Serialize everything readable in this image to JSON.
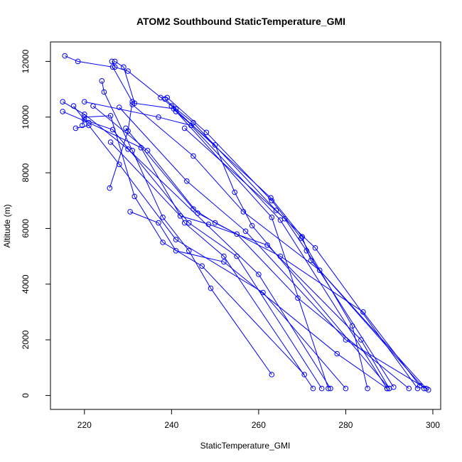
{
  "chart_data": {
    "type": "line",
    "title": "ATOM2 Southbound StaticTemperature_GMI",
    "xlabel": "StaticTemperature_GMI",
    "ylabel": "Altitude (m)",
    "xlim": [
      212.2,
      301.8
    ],
    "ylim": [
      -500,
      12700
    ],
    "xticks": [
      220,
      240,
      260,
      280,
      300
    ],
    "yticks": [
      0,
      2000,
      4000,
      6000,
      8000,
      10000,
      12000
    ],
    "grid": false,
    "legend": "none",
    "color": "#0000ff",
    "series": [
      {
        "points": [
          [
            215.5,
            12200
          ],
          [
            218.5,
            12000
          ],
          [
            226.5,
            11800
          ],
          [
            231,
            10550
          ],
          [
            230,
            9500
          ],
          [
            225.8,
            7450
          ]
        ]
      },
      {
        "points": [
          [
            226.3,
            12000
          ],
          [
            227,
            11800
          ],
          [
            230,
            11650
          ],
          [
            240,
            10400
          ],
          [
            262.8,
            7100
          ],
          [
            270,
            5700
          ],
          [
            272,
            4850
          ],
          [
            298.5,
            250
          ]
        ]
      },
      {
        "points": [
          [
            227,
            12000
          ],
          [
            229,
            11800
          ],
          [
            231.5,
            10500
          ],
          [
            240.5,
            10300
          ],
          [
            263,
            6400
          ],
          [
            276,
            250
          ]
        ]
      },
      {
        "points": [
          [
            224,
            11300
          ],
          [
            224.5,
            10900
          ],
          [
            231,
            8800
          ],
          [
            238,
            6400
          ],
          [
            244,
            5200
          ],
          [
            249,
            3850
          ],
          [
            263,
            750
          ]
        ]
      },
      {
        "points": [
          [
            215,
            10550
          ],
          [
            220,
            10100
          ],
          [
            230,
            8850
          ],
          [
            260,
            4350
          ],
          [
            276.5,
            250
          ]
        ]
      },
      {
        "points": [
          [
            215,
            10200
          ],
          [
            221,
            9800
          ],
          [
            233,
            8900
          ],
          [
            243,
            6200
          ],
          [
            252,
            5000
          ],
          [
            272.5,
            250
          ]
        ]
      },
      {
        "points": [
          [
            220,
            10550
          ],
          [
            237,
            10000
          ],
          [
            244.5,
            9700
          ],
          [
            265,
            6300
          ],
          [
            289.5,
            250
          ]
        ]
      },
      {
        "points": [
          [
            217.5,
            10400
          ],
          [
            220,
            9900
          ],
          [
            226.5,
            9550
          ],
          [
            244,
            6200
          ],
          [
            255,
            5000
          ],
          [
            274.5,
            250
          ]
        ]
      },
      {
        "points": [
          [
            218,
            9600
          ],
          [
            221,
            9700
          ],
          [
            228,
            8300
          ],
          [
            241,
            5600
          ],
          [
            261,
            3700
          ],
          [
            280,
            250
          ]
        ]
      },
      {
        "points": [
          [
            219.5,
            9700
          ],
          [
            220,
            10000
          ],
          [
            226,
            10050
          ],
          [
            231.5,
            7150
          ],
          [
            238,
            5500
          ],
          [
            247,
            4650
          ],
          [
            270.5,
            750
          ]
        ]
      },
      {
        "points": [
          [
            237.5,
            10700
          ],
          [
            239,
            10700
          ],
          [
            248,
            9450
          ],
          [
            263,
            7000
          ],
          [
            269.8,
            5650
          ],
          [
            281.5,
            2500
          ],
          [
            285,
            250
          ]
        ]
      },
      {
        "points": [
          [
            238.5,
            10650
          ],
          [
            241,
            10300
          ],
          [
            245,
            9800
          ],
          [
            264,
            6650
          ],
          [
            273,
            5300
          ],
          [
            296.5,
            250
          ]
        ]
      },
      {
        "points": [
          [
            241,
            10200
          ],
          [
            250,
            9000
          ],
          [
            254.5,
            7300
          ],
          [
            258.5,
            6100
          ],
          [
            290,
            250
          ]
        ]
      },
      {
        "points": [
          [
            243,
            9600
          ],
          [
            266,
            6350
          ],
          [
            271,
            5200
          ],
          [
            291,
            300
          ]
        ]
      },
      {
        "points": [
          [
            228,
            10350
          ],
          [
            243.5,
            7700
          ],
          [
            257,
            5900
          ],
          [
            280,
            2000
          ],
          [
            299,
            200
          ]
        ]
      },
      {
        "points": [
          [
            231,
            10450
          ],
          [
            245,
            8600
          ],
          [
            256.5,
            6600
          ],
          [
            274,
            4500
          ],
          [
            298,
            250
          ]
        ]
      },
      {
        "points": [
          [
            222,
            10400
          ],
          [
            234.5,
            8800
          ],
          [
            246,
            6550
          ],
          [
            255,
            5800
          ],
          [
            269,
            3500
          ],
          [
            294.5,
            250
          ]
        ]
      },
      {
        "points": [
          [
            230.5,
            6600
          ],
          [
            237,
            6200
          ],
          [
            241,
            5200
          ],
          [
            252,
            4800
          ],
          [
            278,
            1500
          ],
          [
            289.5,
            250
          ]
        ]
      },
      {
        "points": [
          [
            226,
            9100
          ],
          [
            242,
            6450
          ],
          [
            248.5,
            6150
          ],
          [
            262,
            5400
          ],
          [
            283.5,
            2000
          ],
          [
            290,
            250
          ]
        ]
      },
      {
        "points": [
          [
            229.5,
            9600
          ],
          [
            245,
            6700
          ],
          [
            250,
            6200
          ],
          [
            265,
            5000
          ],
          [
            284,
            3000
          ],
          [
            297,
            350
          ]
        ]
      }
    ]
  }
}
